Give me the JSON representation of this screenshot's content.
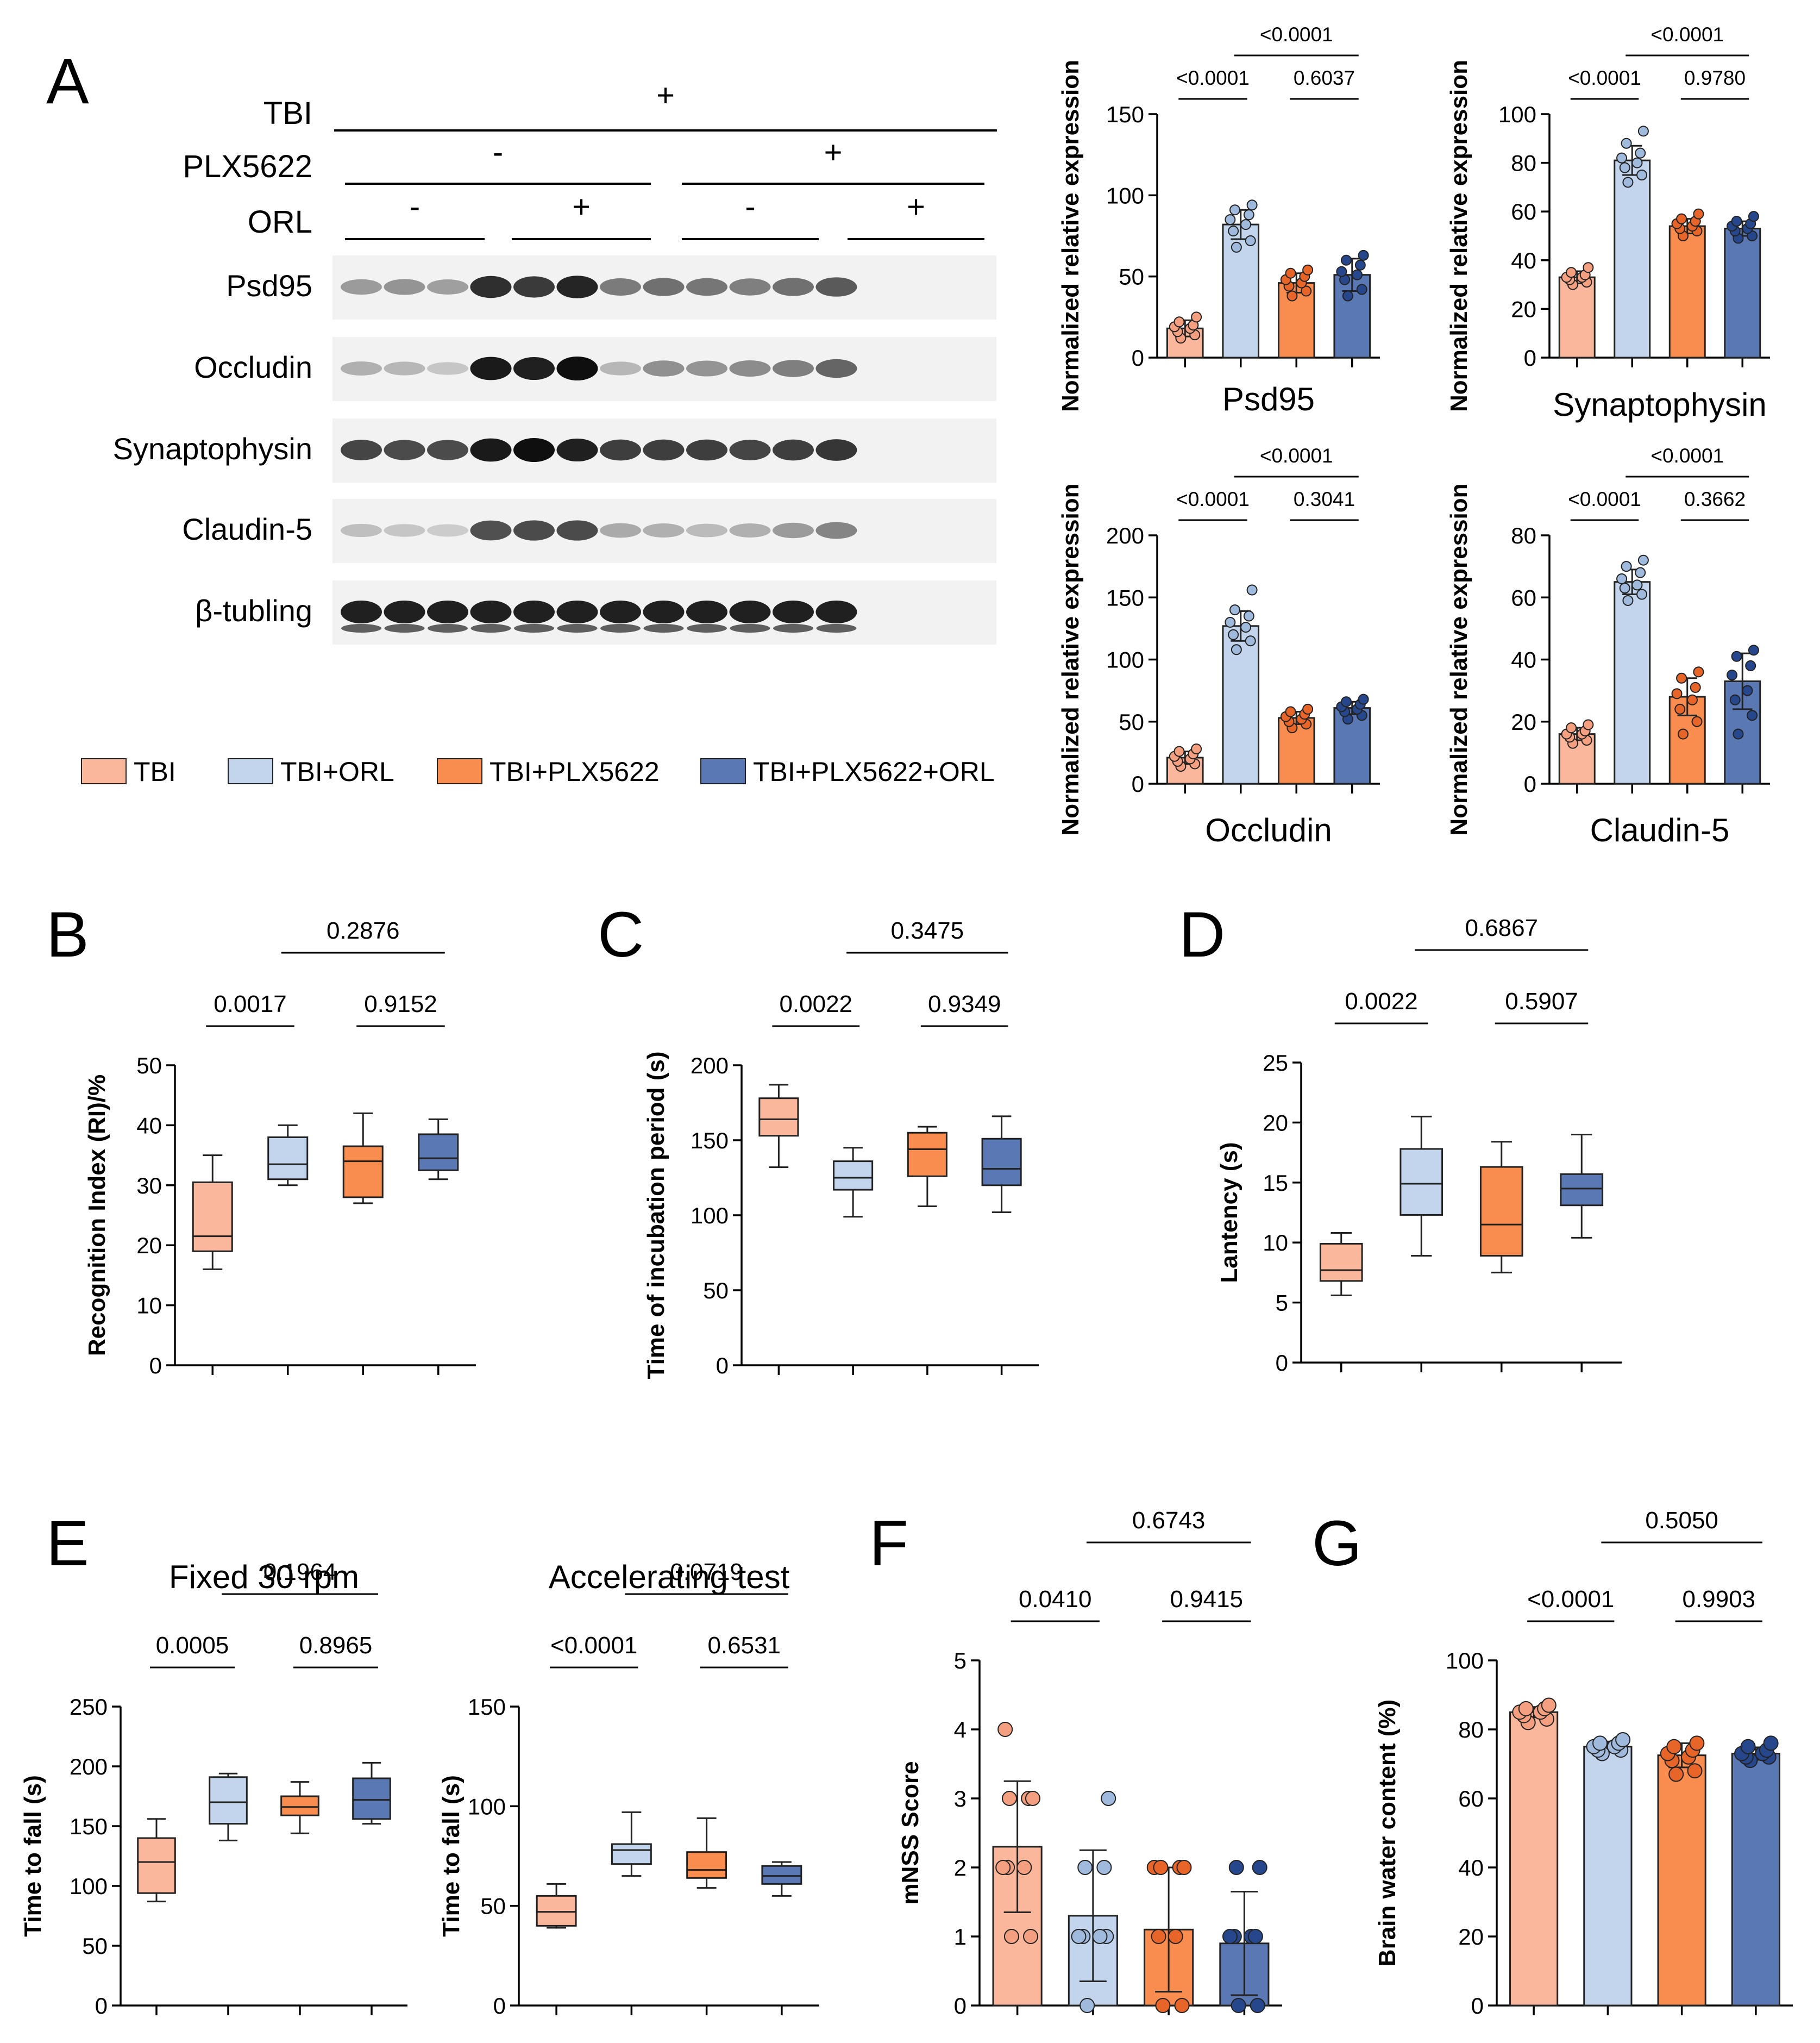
{
  "colors": {
    "TBI": "#fbb79b",
    "TBI+ORL": "#c3d5ec",
    "TBI+PLX5622": "#f98d4f",
    "TBI+PLX5622+ORL": "#5a78b4"
  },
  "blot": {
    "letter": "A",
    "treatment_rows": [
      {
        "name": "TBI",
        "signs": [
          "+"
        ]
      },
      {
        "name": "PLX5622",
        "signs": [
          "-",
          "+"
        ]
      },
      {
        "name": "ORL",
        "signs": [
          "-",
          "+",
          "-",
          "+"
        ]
      }
    ],
    "bands": [
      "Psd95",
      "Occludin",
      "Synaptophysin",
      "Claudin-5",
      "β-tubling"
    ],
    "legend": [
      "TBI",
      "TBI+ORL",
      "TBI+PLX5622",
      "TBI+PLX5622+ORL"
    ]
  },
  "chart_data": [
    {
      "id": "psd95",
      "type": "bar",
      "title": "Psd95",
      "ylabel": "Normalized relative expression",
      "categories": [
        "TBI",
        "TBI+ORL",
        "TBI+PLX5622",
        "TBI+PLX5622+ORL"
      ],
      "ylim": [
        0,
        150
      ],
      "yticks": [
        "0",
        "50",
        "100",
        "150"
      ],
      "values": [
        18,
        82,
        46,
        51
      ],
      "errors": [
        5,
        9,
        6,
        10
      ],
      "points": [
        [
          12,
          14,
          16,
          18,
          19,
          20,
          22,
          25
        ],
        [
          68,
          72,
          78,
          82,
          85,
          88,
          91,
          94
        ],
        [
          38,
          41,
          44,
          46,
          48,
          50,
          52,
          54
        ],
        [
          38,
          42,
          48,
          51,
          53,
          57,
          60,
          63
        ]
      ],
      "comparisons": [
        {
          "a": 0,
          "b": 1,
          "label": "<0.0001",
          "level": 1
        },
        {
          "a": 2,
          "b": 3,
          "label": "0.6037",
          "level": 1
        },
        {
          "a": 1,
          "b": 3,
          "label": "<0.0001",
          "level": 2
        }
      ]
    },
    {
      "id": "synaptophysin",
      "type": "bar",
      "title": "Synaptophysin",
      "ylabel": "Normalized relative expression",
      "categories": [
        "TBI",
        "TBI+ORL",
        "TBI+PLX5622",
        "TBI+PLX5622+ORL"
      ],
      "ylim": [
        0,
        100
      ],
      "yticks": [
        "0",
        "20",
        "40",
        "60",
        "80",
        "100"
      ],
      "values": [
        33,
        81,
        54,
        53
      ],
      "errors": [
        2.5,
        6,
        3,
        3
      ],
      "points": [
        [
          30,
          31,
          32,
          33,
          33,
          34,
          35,
          37
        ],
        [
          72,
          75,
          78,
          80,
          82,
          84,
          88,
          93
        ],
        [
          50,
          52,
          53,
          54,
          55,
          56,
          57,
          59
        ],
        [
          49,
          50,
          52,
          53,
          54,
          55,
          56,
          58
        ]
      ],
      "comparisons": [
        {
          "a": 0,
          "b": 1,
          "label": "<0.0001",
          "level": 1
        },
        {
          "a": 2,
          "b": 3,
          "label": "0.9780",
          "level": 1
        },
        {
          "a": 1,
          "b": 3,
          "label": "<0.0001",
          "level": 2
        }
      ]
    },
    {
      "id": "occludin",
      "type": "bar",
      "title": "Occludin",
      "ylabel": "Normalized relative expression",
      "categories": [
        "TBI",
        "TBI+ORL",
        "TBI+PLX5622",
        "TBI+PLX5622+ORL"
      ],
      "ylim": [
        0,
        200
      ],
      "yticks": [
        "0",
        "50",
        "100",
        "150",
        "200"
      ],
      "values": [
        21,
        127,
        53,
        61
      ],
      "errors": [
        5,
        12,
        5,
        5
      ],
      "points": [
        [
          14,
          16,
          18,
          20,
          22,
          24,
          26,
          28
        ],
        [
          108,
          115,
          120,
          126,
          130,
          135,
          140,
          156
        ],
        [
          45,
          48,
          50,
          52,
          54,
          56,
          58,
          60
        ],
        [
          52,
          55,
          58,
          60,
          62,
          64,
          66,
          68
        ]
      ],
      "comparisons": [
        {
          "a": 0,
          "b": 1,
          "label": "<0.0001",
          "level": 1
        },
        {
          "a": 2,
          "b": 3,
          "label": "0.3041",
          "level": 1
        },
        {
          "a": 1,
          "b": 3,
          "label": "<0.0001",
          "level": 2
        }
      ]
    },
    {
      "id": "claudin5",
      "type": "bar",
      "title": "Claudin-5",
      "ylabel": "Normalized relative expression",
      "categories": [
        "TBI",
        "TBI+ORL",
        "TBI+PLX5622",
        "TBI+PLX5622+ORL"
      ],
      "ylim": [
        0,
        80
      ],
      "yticks": [
        "0",
        "20",
        "40",
        "60",
        "80"
      ],
      "values": [
        16,
        65,
        28,
        33
      ],
      "errors": [
        2,
        4,
        6,
        9
      ],
      "points": [
        [
          13,
          14,
          15,
          16,
          16,
          17,
          18,
          19
        ],
        [
          59,
          61,
          63,
          64,
          66,
          68,
          70,
          72
        ],
        [
          16,
          20,
          24,
          27,
          29,
          31,
          34,
          36
        ],
        [
          16,
          22,
          27,
          30,
          35,
          38,
          41,
          43
        ]
      ],
      "comparisons": [
        {
          "a": 0,
          "b": 1,
          "label": "<0.0001",
          "level": 1
        },
        {
          "a": 2,
          "b": 3,
          "label": "0.3662",
          "level": 1
        },
        {
          "a": 1,
          "b": 3,
          "label": "<0.0001",
          "level": 2
        }
      ]
    },
    {
      "id": "B",
      "letter": "B",
      "type": "box",
      "title": "",
      "ylabel": "Recognition Index (RI)/%",
      "ylim": [
        0,
        50
      ],
      "yticks": [
        "0",
        "10",
        "20",
        "30",
        "40",
        "50"
      ],
      "boxes": [
        {
          "min": 16,
          "q1": 19,
          "median": 21.5,
          "q3": 30.5,
          "max": 35
        },
        {
          "min": 30,
          "q1": 31,
          "median": 33.5,
          "q3": 38,
          "max": 40
        },
        {
          "min": 27,
          "q1": 28,
          "median": 34,
          "q3": 36.5,
          "max": 42
        },
        {
          "min": 31,
          "q1": 32.5,
          "median": 34.5,
          "q3": 38.5,
          "max": 41
        }
      ],
      "comparisons": [
        {
          "a": 0,
          "b": 1,
          "label": "0.0017",
          "level": 1
        },
        {
          "a": 2,
          "b": 3,
          "label": "0.9152",
          "level": 1
        },
        {
          "a": 1,
          "b": 3,
          "label": "0.2876",
          "level": 2
        }
      ]
    },
    {
      "id": "C",
      "letter": "C",
      "type": "box",
      "title": "",
      "ylabel": "Time of incubation period (s)",
      "ylim": [
        0,
        200
      ],
      "yticks": [
        "0",
        "50",
        "100",
        "150",
        "200"
      ],
      "boxes": [
        {
          "min": 132,
          "q1": 153,
          "median": 164,
          "q3": 178,
          "max": 187
        },
        {
          "min": 99,
          "q1": 117,
          "median": 125,
          "q3": 136,
          "max": 145
        },
        {
          "min": 106,
          "q1": 126,
          "median": 144,
          "q3": 155,
          "max": 159
        },
        {
          "min": 102,
          "q1": 120,
          "median": 131,
          "q3": 151,
          "max": 166
        }
      ],
      "comparisons": [
        {
          "a": 0,
          "b": 1,
          "label": "0.0022",
          "level": 1
        },
        {
          "a": 2,
          "b": 3,
          "label": "0.9349",
          "level": 1
        },
        {
          "a": 1,
          "b": 3,
          "label": "0.3475",
          "level": 2
        }
      ]
    },
    {
      "id": "D",
      "letter": "D",
      "type": "box",
      "title": "",
      "ylabel": "Lantency (s)",
      "ylim": [
        0,
        25
      ],
      "yticks": [
        "0",
        "5",
        "10",
        "15",
        "20",
        "25"
      ],
      "boxes": [
        {
          "min": 5.6,
          "q1": 6.8,
          "median": 7.7,
          "q3": 9.9,
          "max": 10.8
        },
        {
          "min": 8.9,
          "q1": 12.3,
          "median": 14.9,
          "q3": 17.8,
          "max": 20.5
        },
        {
          "min": 7.5,
          "q1": 8.9,
          "median": 11.5,
          "q3": 16.3,
          "max": 18.4
        },
        {
          "min": 10.4,
          "q1": 13.1,
          "median": 14.5,
          "q3": 15.7,
          "max": 19
        }
      ],
      "comparisons": [
        {
          "a": 0,
          "b": 1,
          "label": "0.0022",
          "level": 1
        },
        {
          "a": 2,
          "b": 3,
          "label": "0.5907",
          "level": 1
        },
        {
          "a": 1,
          "b": 3,
          "label": "0.6867",
          "level": 2
        }
      ]
    },
    {
      "id": "E1",
      "letter": "E",
      "type": "box",
      "title": "Fixed 30 rpm",
      "ylabel": "Time to fall (s)",
      "ylim": [
        0,
        250
      ],
      "yticks": [
        "0",
        "50",
        "100",
        "150",
        "200",
        "250"
      ],
      "boxes": [
        {
          "min": 87,
          "q1": 94,
          "median": 120,
          "q3": 140,
          "max": 156
        },
        {
          "min": 138,
          "q1": 152,
          "median": 170,
          "q3": 191,
          "max": 194
        },
        {
          "min": 144,
          "q1": 159,
          "median": 166,
          "q3": 175,
          "max": 187
        },
        {
          "min": 152,
          "q1": 156,
          "median": 172,
          "q3": 190,
          "max": 203
        }
      ],
      "comparisons": [
        {
          "a": 0,
          "b": 1,
          "label": "0.0005",
          "level": 1
        },
        {
          "a": 2,
          "b": 3,
          "label": "0.8965",
          "level": 1
        },
        {
          "a": 1,
          "b": 3,
          "label": "0.1964",
          "level": 2
        }
      ]
    },
    {
      "id": "E2",
      "type": "box",
      "title": "Accelerating test",
      "ylabel": "Time to fall (s)",
      "ylim": [
        0,
        150
      ],
      "yticks": [
        "0",
        "50",
        "100",
        "150"
      ],
      "boxes": [
        {
          "min": 39,
          "q1": 40,
          "median": 47,
          "q3": 55,
          "max": 61
        },
        {
          "min": 65,
          "q1": 71,
          "median": 78,
          "q3": 81,
          "max": 97
        },
        {
          "min": 59,
          "q1": 64,
          "median": 68,
          "q3": 77,
          "max": 94
        },
        {
          "min": 55,
          "q1": 61,
          "median": 65,
          "q3": 70,
          "max": 72
        }
      ],
      "comparisons": [
        {
          "a": 0,
          "b": 1,
          "label": "<0.0001",
          "level": 1
        },
        {
          "a": 2,
          "b": 3,
          "label": "0.6531",
          "level": 1
        },
        {
          "a": 1,
          "b": 3,
          "label": "0.0719",
          "level": 2
        }
      ]
    },
    {
      "id": "F",
      "letter": "F",
      "type": "bar",
      "title": "",
      "ylabel": "mNSS Score",
      "ylim": [
        0,
        5
      ],
      "yticks": [
        "0",
        "1",
        "2",
        "3",
        "4",
        "5"
      ],
      "values": [
        2.3,
        1.3,
        1.1,
        0.9
      ],
      "errors": [
        0.95,
        0.95,
        0.9,
        0.75
      ],
      "points": [
        [
          1,
          1,
          2,
          2,
          2,
          3,
          3,
          3,
          4
        ],
        [
          0,
          1,
          1,
          1,
          1,
          2,
          2,
          3
        ],
        [
          0,
          0,
          1,
          1,
          2,
          2,
          2,
          2
        ],
        [
          0,
          0,
          1,
          1,
          1,
          1,
          2,
          2
        ]
      ],
      "comparisons": [
        {
          "a": 0,
          "b": 1,
          "label": "0.0410",
          "level": 1
        },
        {
          "a": 2,
          "b": 3,
          "label": "0.9415",
          "level": 1
        },
        {
          "a": 1,
          "b": 3,
          "label": "0.6743",
          "level": 2
        }
      ]
    },
    {
      "id": "G",
      "letter": "G",
      "type": "bar",
      "title": "",
      "ylabel": "Brain water content (%)",
      "ylim": [
        0,
        100
      ],
      "yticks": [
        "0",
        "20",
        "40",
        "60",
        "80",
        "100"
      ],
      "values": [
        85,
        75,
        72.5,
        73
      ],
      "errors": [
        1.5,
        1.5,
        3.5,
        1.8
      ],
      "points": [
        [
          82,
          83,
          84,
          85,
          85,
          86,
          86,
          87
        ],
        [
          73,
          74,
          74,
          75,
          75,
          76,
          76,
          77
        ],
        [
          67,
          68,
          71,
          72,
          73,
          74,
          75,
          76
        ],
        [
          71,
          72,
          72,
          73,
          73,
          74,
          75,
          76
        ]
      ],
      "comparisons": [
        {
          "a": 0,
          "b": 1,
          "label": "<0.0001",
          "level": 1
        },
        {
          "a": 2,
          "b": 3,
          "label": "0.9903",
          "level": 1
        },
        {
          "a": 1,
          "b": 3,
          "label": "0.5050",
          "level": 2
        }
      ]
    }
  ]
}
